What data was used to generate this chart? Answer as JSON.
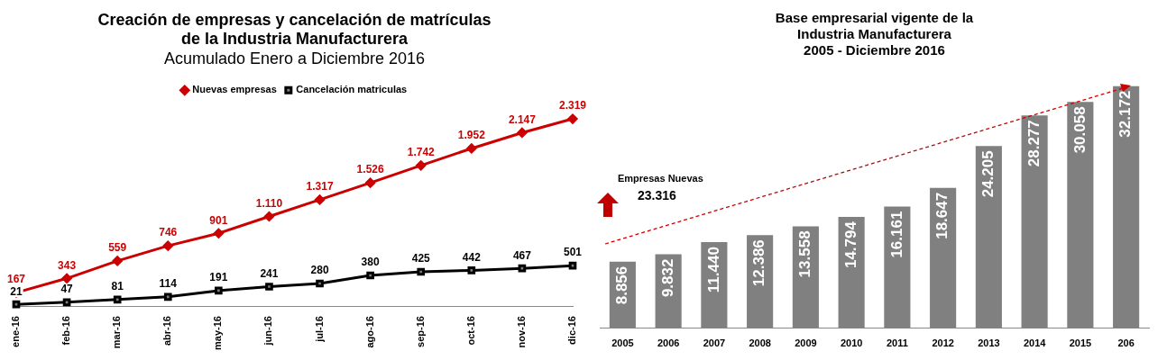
{
  "chart_data": [
    {
      "type": "line",
      "title": "Creación de empresas y cancelación de matrículas\nde la Industria Manufacturera",
      "subtitle": "Acumulado Enero a Diciembre 2016",
      "categories": [
        "ene-16",
        "feb-16",
        "mar-16",
        "abr-16",
        "may-16",
        "jun-16",
        "jul-16",
        "ago-16",
        "sep-16",
        "oct-16",
        "nov-16",
        "dic-16"
      ],
      "series": [
        {
          "name": "Nuevas empresas",
          "color": "#cc0000",
          "marker": "diamond",
          "values": [
            167,
            343,
            559,
            746,
            901,
            1110,
            1317,
            1526,
            1742,
            1952,
            2147,
            2319
          ],
          "value_labels": [
            "167",
            "343",
            "559",
            "746",
            "901",
            "1.110",
            "1.317",
            "1.526",
            "1.742",
            "1.952",
            "2.147",
            "2.319"
          ]
        },
        {
          "name": "Cancelación matriculas",
          "color": "#000000",
          "marker": "square",
          "values": [
            21,
            47,
            81,
            114,
            191,
            241,
            280,
            380,
            425,
            442,
            467,
            501
          ],
          "value_labels": [
            "21",
            "47",
            "81",
            "114",
            "191",
            "241",
            "280",
            "380",
            "425",
            "442",
            "467",
            "501"
          ]
        }
      ],
      "tick_labels": "x",
      "grid": false,
      "legend": "top",
      "line_style": "solid"
    },
    {
      "type": "bar",
      "title": "Base empresarial vigente de la\nIndustria Manufacturera\n2005 - Diciembre 2016",
      "categories": [
        "2005",
        "2006",
        "2007",
        "2008",
        "2009",
        "2010",
        "2011",
        "2012",
        "2013",
        "2014",
        "2015",
        "206"
      ],
      "series": [
        {
          "color": "#808080",
          "values": [
            8856,
            9832,
            11440,
            12386,
            13558,
            14794,
            16161,
            18647,
            24205,
            28277,
            30058,
            32172
          ],
          "value_labels": [
            "8.856",
            "9.832",
            "11.440",
            "12.386",
            "13.558",
            "14.794",
            "16.161",
            "18.647",
            "24.205",
            "28.277",
            "30.058",
            "32.172"
          ]
        }
      ],
      "tick_labels": "x",
      "grid": false,
      "legend": false,
      "annotations": [
        "Empresas Nuevas",
        "23.316"
      ]
    }
  ]
}
